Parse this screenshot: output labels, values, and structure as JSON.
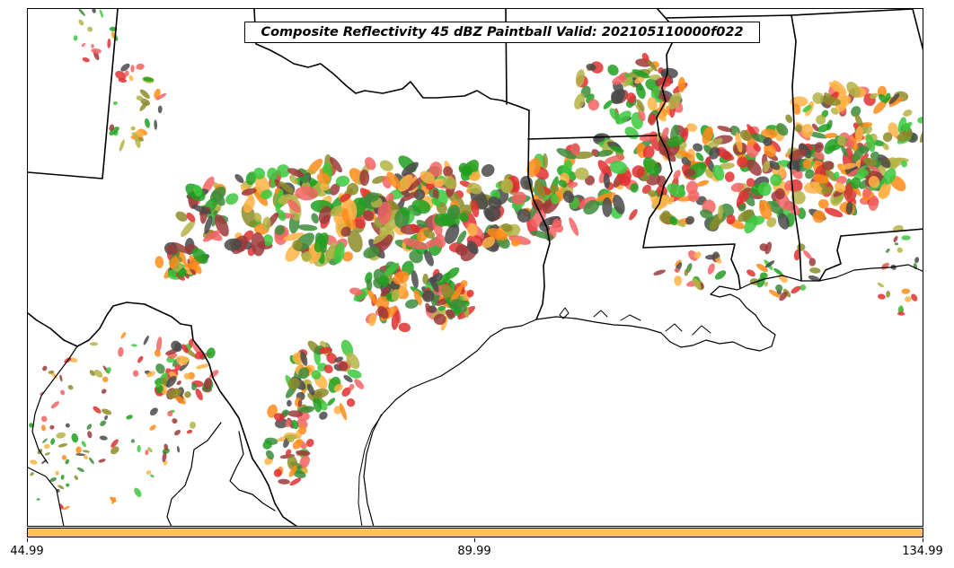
{
  "title": "Composite Reflectivity 45 dBZ Paintball Valid: 202105110000f022",
  "colorbar": {
    "color": "#ffc066",
    "ticks": [
      "44.99",
      "89.99",
      "134.99"
    ]
  },
  "paintball_colors": [
    "#f36464",
    "#ff8c1a",
    "#ffb347",
    "#9c3a3a",
    "#8c8c2a",
    "#b4b446",
    "#3cc83c",
    "#1ea01e",
    "#4a4a4a",
    "#3c8c3c",
    "#e03030"
  ]
}
